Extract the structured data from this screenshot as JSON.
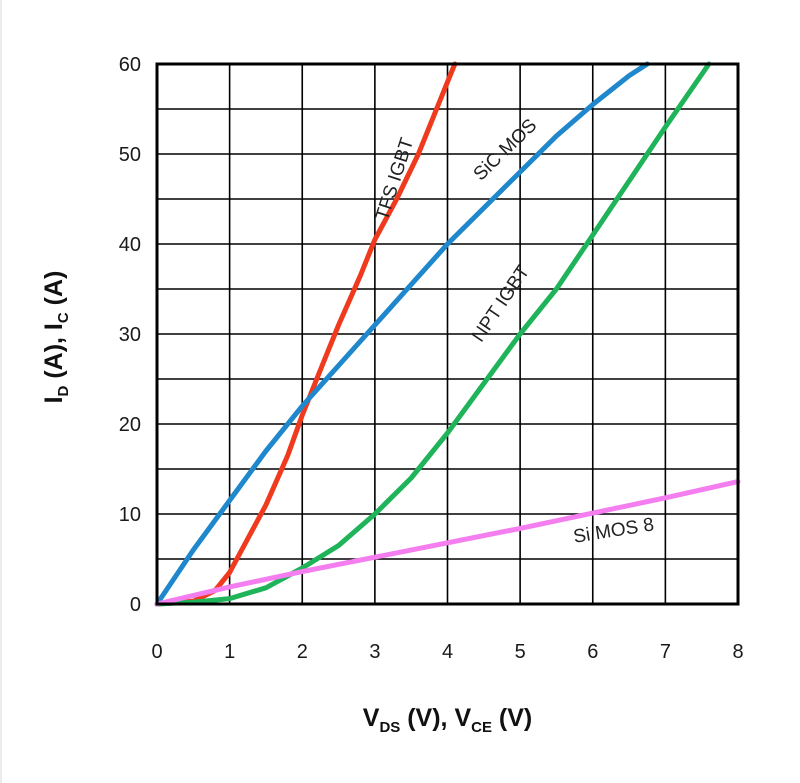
{
  "chart_data": {
    "type": "line",
    "xlabel": {
      "parts": [
        [
          "V",
          ""
        ],
        [
          "DS",
          "sub"
        ],
        [
          " (V), V",
          ""
        ],
        [
          "CE",
          "sub"
        ],
        [
          " (V)",
          ""
        ]
      ]
    },
    "ylabel": {
      "parts": [
        [
          "I",
          ""
        ],
        [
          "D",
          "sub"
        ],
        [
          " (A), I",
          ""
        ],
        [
          "C",
          "sub"
        ],
        [
          " (A)",
          ""
        ]
      ]
    },
    "xlim": [
      0,
      8
    ],
    "ylim": [
      0,
      60
    ],
    "xticks": [
      "0",
      "1",
      "2",
      "3",
      "4",
      "5",
      "6",
      "7",
      "8"
    ],
    "yticks": [
      "0",
      "10",
      "20",
      "30",
      "40",
      "50",
      "60"
    ],
    "grid": true,
    "series": [
      {
        "name": "TFS IGBT",
        "color": "#f03a1e",
        "x": [
          0,
          0.5,
          0.8,
          1.0,
          1.2,
          1.5,
          1.8,
          2.0,
          2.3,
          2.5,
          2.8,
          3.0,
          3.3,
          3.6,
          3.9,
          4.1
        ],
        "y": [
          0,
          0.3,
          1.5,
          3.5,
          6.5,
          11,
          16.5,
          21,
          27,
          31,
          36.5,
          40.5,
          45,
          50,
          56,
          60
        ]
      },
      {
        "name": "SiC MOS",
        "color": "#1f87cc",
        "x": [
          0,
          0.5,
          1,
          1.5,
          2,
          2.5,
          3,
          3.5,
          4,
          4.5,
          5,
          5.5,
          6,
          6.5,
          6.75
        ],
        "y": [
          0,
          6,
          11.5,
          17,
          22,
          26.5,
          31,
          35.5,
          40,
          44,
          48,
          52,
          55.5,
          58.7,
          60
        ]
      },
      {
        "name": "NPT IGBT",
        "color": "#1fb35a",
        "x": [
          0,
          0.5,
          1,
          1.5,
          2,
          2.5,
          3,
          3.5,
          4,
          4.5,
          5,
          5.5,
          6,
          6.5,
          7,
          7.6
        ],
        "y": [
          0,
          0.2,
          0.6,
          1.8,
          4,
          6.5,
          10,
          14,
          19,
          24.5,
          30,
          35,
          41,
          47,
          53,
          60
        ]
      },
      {
        "name": "Si MOS 8",
        "color": "#f47ef0",
        "x": [
          0,
          1,
          2,
          3,
          4,
          5,
          6,
          7,
          8
        ],
        "y": [
          0,
          1.9,
          3.6,
          5.2,
          6.8,
          8.4,
          10.1,
          11.8,
          13.6
        ]
      }
    ],
    "annotations": [
      {
        "text": "TFS IGBT",
        "series": "TFS IGBT",
        "x": 3.35,
        "y": 47,
        "angle": -72
      },
      {
        "text": "SiC MOS",
        "series": "SiC MOS",
        "x": 4.85,
        "y": 50,
        "angle": -44
      },
      {
        "text": "NPT IGBT",
        "series": "NPT IGBT",
        "x": 4.8,
        "y": 33,
        "angle": -56
      },
      {
        "text": "Si MOS 8",
        "series": "Si MOS 8",
        "x": 6.3,
        "y": 7.5,
        "angle": -9
      }
    ]
  }
}
